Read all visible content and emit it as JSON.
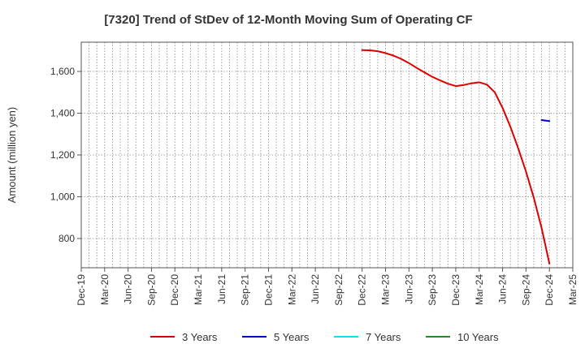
{
  "chart_data": {
    "type": "line",
    "title": "[7320]  Trend of StDev of 12-Month Moving Sum of Operating CF",
    "xlabel": "",
    "ylabel": "Amount (million yen)",
    "ylim": [
      660,
      1740
    ],
    "yticks": [
      800,
      1000,
      1200,
      1400,
      1600
    ],
    "ytick_labels": [
      "800",
      "1,000",
      "1,200",
      "1,400",
      "1,600"
    ],
    "xlim": [
      "2019-12",
      "2025-03"
    ],
    "xtick_labels": [
      "Dec-19",
      "Mar-20",
      "Jun-20",
      "Sep-20",
      "Dec-20",
      "Mar-21",
      "Jun-21",
      "Sep-21",
      "Dec-21",
      "Mar-22",
      "Jun-22",
      "Sep-22",
      "Dec-22",
      "Mar-23",
      "Jun-23",
      "Sep-23",
      "Dec-23",
      "Mar-24",
      "Jun-24",
      "Sep-24",
      "Dec-24",
      "Mar-25"
    ],
    "grid": true,
    "legend_position": "bottom",
    "series": [
      {
        "name": "3 Years",
        "color": "#dd0000",
        "x": [
          "2022-12",
          "2023-01",
          "2023-02",
          "2023-03",
          "2023-04",
          "2023-05",
          "2023-06",
          "2023-07",
          "2023-08",
          "2023-09",
          "2023-10",
          "2023-11",
          "2023-12",
          "2024-01",
          "2024-02",
          "2024-03",
          "2024-04",
          "2024-05",
          "2024-06",
          "2024-07",
          "2024-08",
          "2024-09",
          "2024-10",
          "2024-11",
          "2024-12"
        ],
        "values": [
          1702,
          1701,
          1697,
          1688,
          1676,
          1660,
          1640,
          1617,
          1595,
          1574,
          1557,
          1541,
          1530,
          1535,
          1543,
          1548,
          1537,
          1500,
          1425,
          1335,
          1232,
          1120,
          995,
          850,
          680
        ]
      },
      {
        "name": "5 Years",
        "color": "#0000cc",
        "x": [
          "2024-11",
          "2024-12"
        ],
        "values": [
          1367,
          1362
        ]
      },
      {
        "name": "7 Years",
        "color": "#00e5ee",
        "x": [],
        "values": []
      },
      {
        "name": "10 Years",
        "color": "#228b22",
        "x": [],
        "values": []
      }
    ]
  }
}
